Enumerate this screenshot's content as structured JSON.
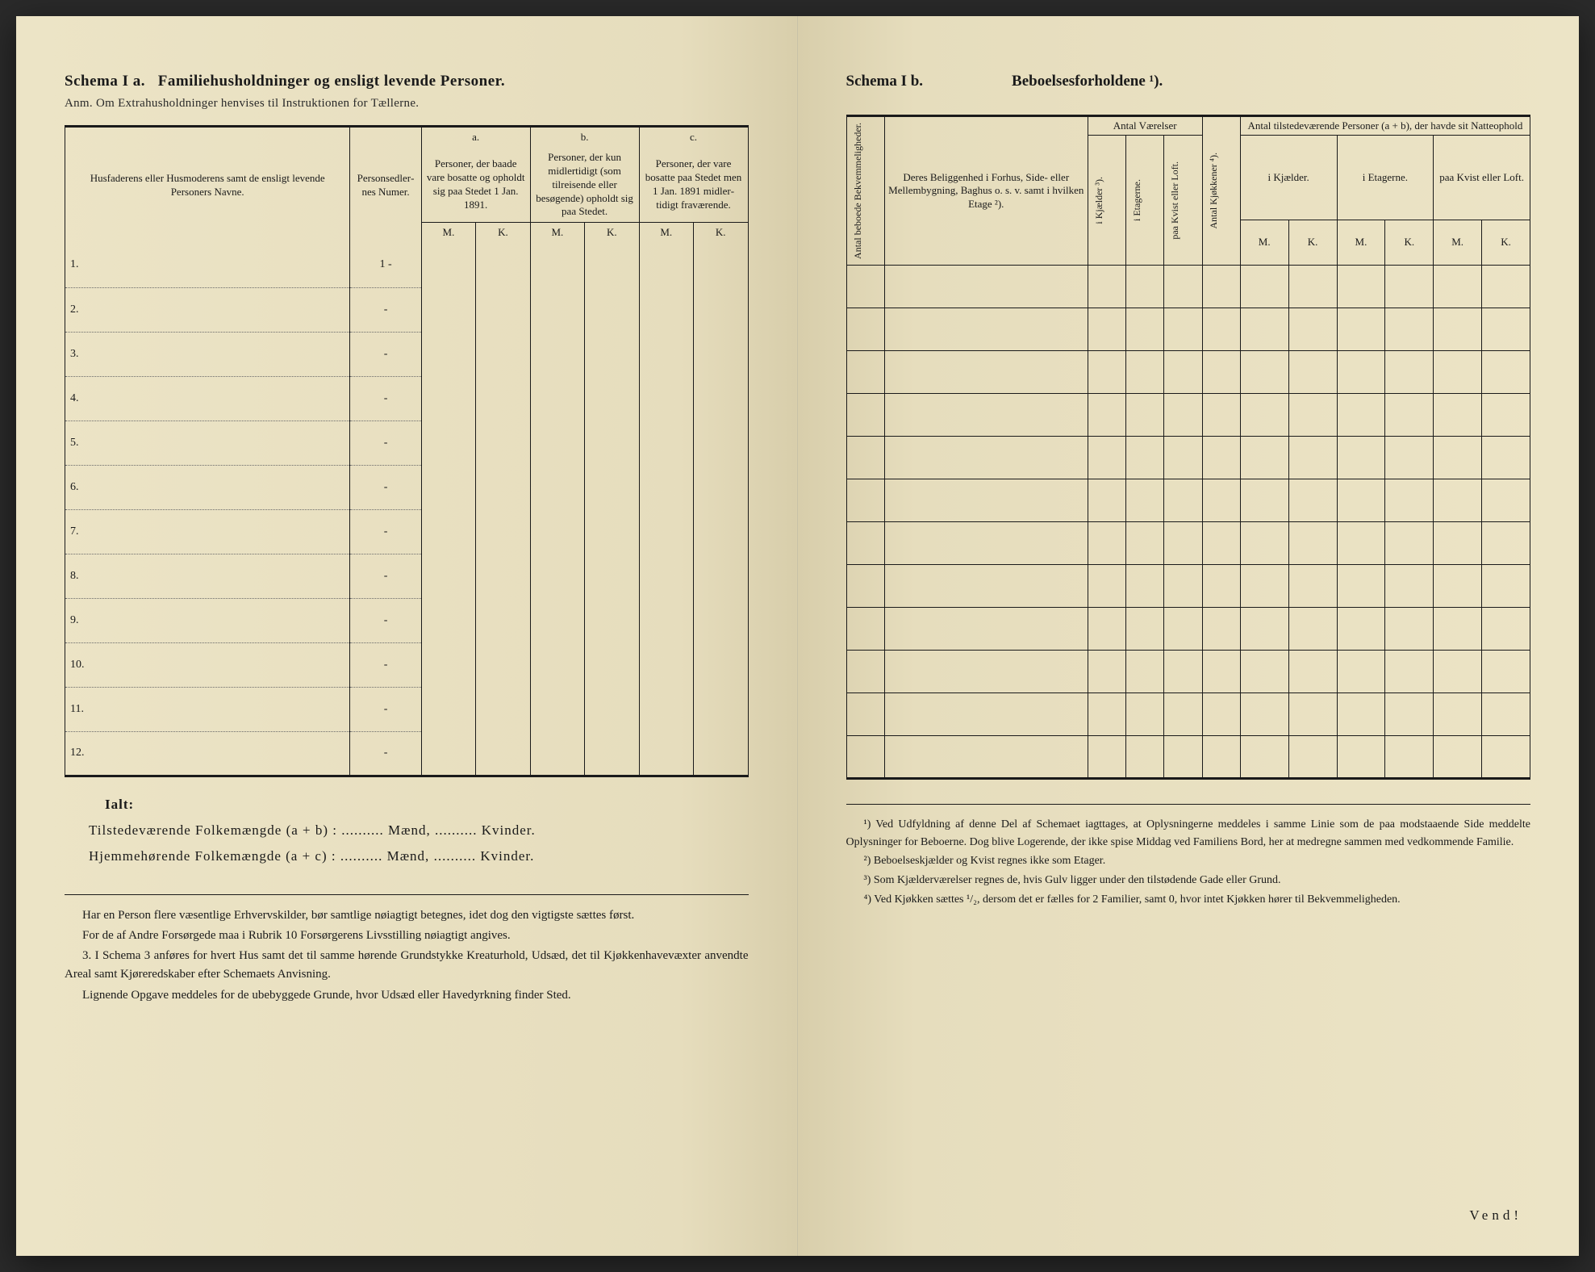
{
  "left": {
    "title_prefix": "Schema I a.",
    "title_main": "Familiehusholdninger og ensligt levende Personer.",
    "subtitle": "Anm. Om Extrahusholdninger henvises til Instruktionen for Tællerne.",
    "header_names": "Husfaderens eller Husmode­rens samt de ensligt levende Personers Navne.",
    "header_number": "Person­sedler­nes Numer.",
    "header_a_label": "a.",
    "header_a": "Personer, der baade vare bo­satte og opholdt sig paa Stedet 1 Jan. 1891.",
    "header_b_label": "b.",
    "header_b": "Personer, der kun midler­tidigt (som tilreisende eller besøgende) opholdt sig paa Stedet.",
    "header_c_label": "c.",
    "header_c": "Personer, der vare bosatte paa Stedet men 1 Jan. 1891 midler­tidigt fra­værende.",
    "M": "M.",
    "K": "K.",
    "rows": [
      "1.",
      "2.",
      "3.",
      "4.",
      "5.",
      "6.",
      "7.",
      "8.",
      "9.",
      "10.",
      "11.",
      "12."
    ],
    "rownums": [
      "1 -",
      "-",
      "-",
      "-",
      "-",
      "-",
      "-",
      "-",
      "-",
      "-",
      "-",
      "-"
    ],
    "totals": {
      "ialt": "Ialt:",
      "line1_a": "Tilstedeværende Folkemængde (a + b) :",
      "line2_a": "Hjemmehørende Folkemængde (a + c) :",
      "maend": "Mænd,",
      "kvinder": "Kvinder.",
      "dots": ".........."
    },
    "footnotes": [
      "Har en Person flere væsentlige Erhvervskilder, bør samtlige nøiagtigt betegnes, idet dog den vigtigste sættes først.",
      "For de af Andre Forsørgede maa i Rubrik 10 Forsørgerens Livsstilling nøiagtigt angives.",
      "3. I Schema 3 anføres for hvert Hus samt det til samme hørende Grund­stykke Kreaturhold, Udsæd, det til Kjøkkenhavevæxter anvendte Areal samt Kjøreredskaber efter Schemaets Anvisning.",
      "Lignende Opgave meddeles for de ubebyggede Grunde, hvor Udsæd eller Havedyrkning finder Sted."
    ]
  },
  "right": {
    "title_prefix": "Schema I b.",
    "title_main": "Beboelsesforholdene ¹).",
    "col_bekvem": "Antal beboede Bekvemmeligheder.",
    "col_beligg": "Deres Beliggenhed i Forhus, Side- eller Mellembygning, Baghus o. s. v. samt i hvilken Etage ²).",
    "col_vaerelser": "Antal Værelser",
    "col_kjaelder": "i Kjælder ³).",
    "col_etagerne": "i Etagerne.",
    "col_kvistloft": "paa Kvist eller Loft.",
    "col_kjokkener": "Antal Kjøkkener ⁴).",
    "col_natteophold": "Antal tilstedeværende Personer (a + b), der havde sit Natteophold",
    "col_nat_kj": "i Kjæl­der.",
    "col_nat_et": "i Etagerne.",
    "col_nat_kv": "paa Kvist eller Loft.",
    "M": "M.",
    "K": "K.",
    "footnotes": [
      "¹) Ved Udfyldning af denne Del af Schemaet iagttages, at Oplysningerne meddeles i samme Linie som de paa modstaaende Side meddelte Oplysninger for Beboerne. Dog blive Logerende, der ikke spise Middag ved Familiens Bord, her at medregne sammen med vedkommende Familie.",
      "²) Beboelseskjælder og Kvist regnes ikke som Etager.",
      "³) Som Kjælderværelser regnes de, hvis Gulv ligger under den tilstødende Gade eller Grund.",
      "⁴) Ved Kjøkken sættes ¹/₂, dersom det er fælles for 2 Familier, samt 0, hvor intet Kjøkken hører til Bekvemmeligheden."
    ],
    "vend": "Vend!"
  },
  "colors": {
    "paper": "#e8e0c4",
    "ink": "#1a1a1a",
    "rule_dotted": "#6a6a6a"
  }
}
